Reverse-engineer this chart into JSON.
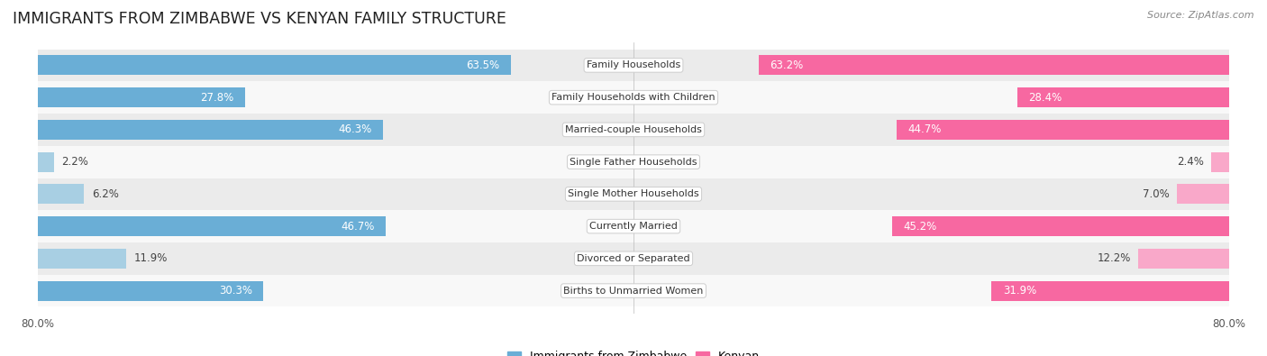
{
  "title": "IMMIGRANTS FROM ZIMBABWE VS KENYAN FAMILY STRUCTURE",
  "source": "Source: ZipAtlas.com",
  "categories": [
    "Family Households",
    "Family Households with Children",
    "Married-couple Households",
    "Single Father Households",
    "Single Mother Households",
    "Currently Married",
    "Divorced or Separated",
    "Births to Unmarried Women"
  ],
  "zimbabwe_values": [
    63.5,
    27.8,
    46.3,
    2.2,
    6.2,
    46.7,
    11.9,
    30.3
  ],
  "kenyan_values": [
    63.2,
    28.4,
    44.7,
    2.4,
    7.0,
    45.2,
    12.2,
    31.9
  ],
  "zimbabwe_color": "#6aaed6",
  "kenyan_color": "#f768a1",
  "zimbabwe_color_light": "#a8cfe3",
  "kenyan_color_light": "#f9a8c9",
  "max_val": 80.0,
  "bar_height": 0.62,
  "row_bg_color": "#ebebeb",
  "row_bg_white": "#f8f8f8",
  "label_fontsize": 8.0,
  "title_fontsize": 12.5,
  "legend_fontsize": 9,
  "value_fontsize": 8.5,
  "axis_tick_fontsize": 8.5
}
